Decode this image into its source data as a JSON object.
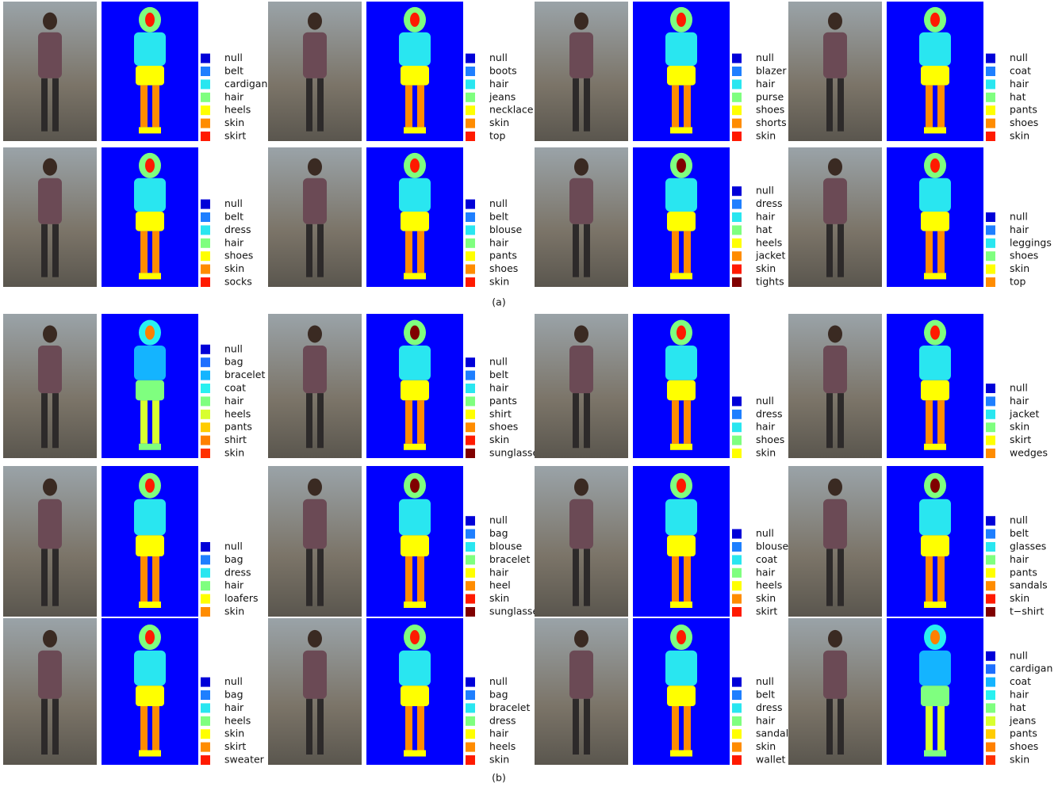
{
  "figure": {
    "panels": [
      {
        "caption": "(a)",
        "rows": [
          [
            {
              "legend": [
                "null",
                "belt",
                "cardigan",
                "hair",
                "heels",
                "skin",
                "skirt"
              ]
            },
            {
              "legend": [
                "null",
                "boots",
                "hair",
                "jeans",
                "necklace",
                "skin",
                "top"
              ]
            },
            {
              "legend": [
                "null",
                "blazer",
                "hair",
                "purse",
                "shoes",
                "shorts",
                "skin"
              ]
            },
            {
              "legend": [
                "null",
                "coat",
                "hair",
                "hat",
                "pants",
                "shoes",
                "skin"
              ]
            }
          ],
          [
            {
              "legend": [
                "null",
                "belt",
                "dress",
                "hair",
                "shoes",
                "skin",
                "socks"
              ]
            },
            {
              "legend": [
                "null",
                "belt",
                "blouse",
                "hair",
                "pants",
                "shoes",
                "skin"
              ]
            },
            {
              "legend": [
                "null",
                "dress",
                "hair",
                "hat",
                "heels",
                "jacket",
                "skin",
                "tights"
              ]
            },
            {
              "legend": [
                "null",
                "hair",
                "leggings",
                "shoes",
                "skin",
                "top"
              ]
            }
          ]
        ]
      },
      {
        "caption": "(b)",
        "rows": [
          [
            {
              "legend": [
                "null",
                "bag",
                "bracelet",
                "coat",
                "hair",
                "heels",
                "pants",
                "shirt",
                "skin"
              ]
            },
            {
              "legend": [
                "null",
                "belt",
                "hair",
                "pants",
                "shirt",
                "shoes",
                "skin",
                "sunglasses"
              ]
            },
            {
              "legend": [
                "null",
                "dress",
                "hair",
                "shoes",
                "skin"
              ]
            },
            {
              "legend": [
                "null",
                "hair",
                "jacket",
                "skin",
                "skirt",
                "wedges"
              ]
            }
          ],
          [
            {
              "legend": [
                "null",
                "bag",
                "dress",
                "hair",
                "loafers",
                "skin"
              ]
            },
            {
              "legend": [
                "null",
                "bag",
                "blouse",
                "bracelet",
                "hair",
                "heel",
                "skin",
                "sunglasses"
              ]
            },
            {
              "legend": [
                "null",
                "blouse",
                "coat",
                "hair",
                "heels",
                "skin",
                "skirt"
              ]
            },
            {
              "legend": [
                "null",
                "belt",
                "glasses",
                "hair",
                "pants",
                "sandals",
                "skin",
                "t−shirt"
              ]
            }
          ],
          [
            {
              "legend": [
                "null",
                "bag",
                "hair",
                "heels",
                "skin",
                "skirt",
                "sweater"
              ]
            },
            {
              "legend": [
                "null",
                "bag",
                "bracelet",
                "dress",
                "hair",
                "heels",
                "skin"
              ]
            },
            {
              "legend": [
                "null",
                "belt",
                "dress",
                "hair",
                "sandals",
                "skin",
                "wallet"
              ]
            },
            {
              "legend": [
                "null",
                "cardigan",
                "coat",
                "hair",
                "hat",
                "jeans",
                "pants",
                "shoes",
                "skin"
              ]
            }
          ]
        ]
      }
    ]
  }
}
